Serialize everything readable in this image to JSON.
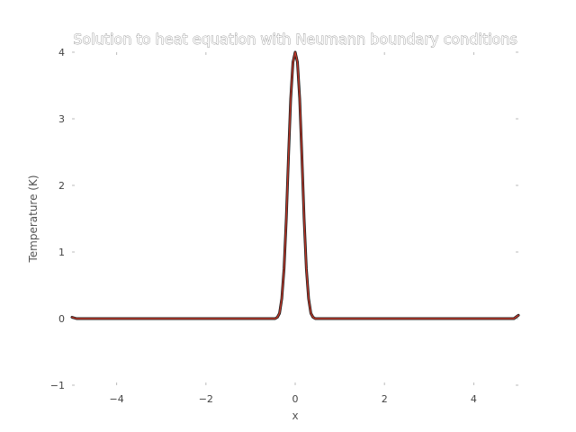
{
  "chart_data": {
    "type": "line",
    "title": "Solution to heat equation with Neumann boundary conditions",
    "xlabel": "x",
    "ylabel": "Temperature (K)",
    "xlim": [
      -5,
      5
    ],
    "ylim": [
      -1,
      4
    ],
    "xticks": [
      -4,
      -2,
      0,
      2,
      4
    ],
    "yticks": [
      -1,
      0,
      1,
      2,
      3,
      4
    ],
    "xtick_labels": [
      "−4",
      "−2",
      "0",
      "2",
      "4"
    ],
    "ytick_labels": [
      "−1",
      "0",
      "1",
      "2",
      "3",
      "4"
    ],
    "grid": false,
    "legend": "none",
    "series": [
      {
        "color": "#c0392b",
        "x": [
          -5.0,
          -4.9,
          -0.5,
          -0.45,
          -0.4,
          -0.35,
          -0.3,
          -0.25,
          -0.2,
          -0.15,
          -0.1,
          -0.05,
          0.0,
          0.05,
          0.1,
          0.15,
          0.2,
          0.25,
          0.3,
          0.35,
          0.4,
          0.45,
          0.5,
          4.9,
          5.0
        ],
        "y": [
          0.02,
          0.0,
          0.0,
          0.0,
          0.02,
          0.08,
          0.3,
          0.75,
          1.5,
          2.45,
          3.3,
          3.85,
          4.0,
          3.85,
          3.3,
          2.45,
          1.5,
          0.75,
          0.3,
          0.08,
          0.02,
          0.0,
          0.0,
          0.0,
          0.05
        ]
      }
    ]
  }
}
